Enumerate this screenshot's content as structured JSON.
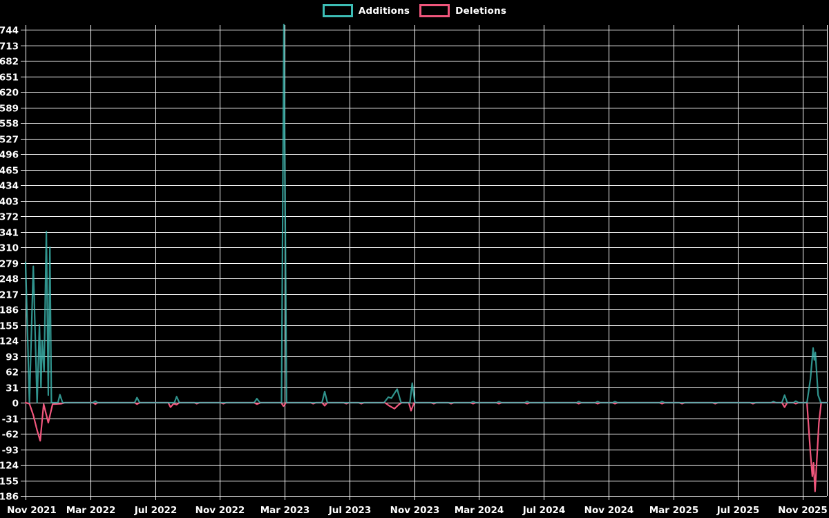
{
  "background_color": "#000000",
  "gridline_color": "#ffffff",
  "text_color": "#ffffff",
  "baseline_blend_color": "#8aa0ac",
  "legend": [
    {
      "label": "Additions",
      "color": "#3DBDB5"
    },
    {
      "label": "Deletions",
      "color": "#F0567C"
    }
  ],
  "chart_data": {
    "type": "line",
    "title": "",
    "xlabel": "",
    "ylabel": "",
    "grid": true,
    "legend_position": "top-center",
    "x_unit": "weeks since Nov 2021 (weekly commit activity)",
    "x_tick_labels": [
      "Nov 2021",
      "Mar 2022",
      "Jul 2022",
      "Nov 2022",
      "Mar 2023",
      "Jul 2023",
      "Nov 2023",
      "Mar 2024",
      "Jul 2024",
      "Nov 2024",
      "Mar 2025",
      "Jul 2025",
      "Nov 2025"
    ],
    "y_tick_labels": [
      744,
      713,
      682,
      651,
      620,
      589,
      558,
      527,
      496,
      465,
      434,
      403,
      372,
      341,
      310,
      279,
      248,
      217,
      186,
      155,
      124,
      93,
      62,
      31,
      0,
      -31,
      -62,
      -93,
      -124,
      -155,
      -186
    ],
    "ylim": [
      -186,
      754
    ],
    "y_tick_step": 31,
    "series": [
      {
        "name": "Additions",
        "color": "#3DBDB5",
        "opacity": 0.78,
        "points": [
          [
            0,
            280
          ],
          [
            1,
            0
          ],
          [
            2,
            272
          ],
          [
            3,
            0
          ],
          [
            3.6,
            155
          ],
          [
            4,
            30
          ],
          [
            4.3,
            124
          ],
          [
            4.8,
            62
          ],
          [
            5.4,
            341
          ],
          [
            5.9,
            15
          ],
          [
            6.3,
            310
          ],
          [
            6.7,
            0
          ],
          [
            8.4,
            0
          ],
          [
            8.9,
            16
          ],
          [
            9.6,
            0
          ],
          [
            17.5,
            0
          ],
          [
            18.1,
            3
          ],
          [
            18.7,
            0
          ],
          [
            28.3,
            0
          ],
          [
            28.9,
            10
          ],
          [
            29.6,
            0
          ],
          [
            38.6,
            0
          ],
          [
            39.2,
            12
          ],
          [
            39.9,
            0
          ],
          [
            59.3,
            0
          ],
          [
            60,
            8
          ],
          [
            60.8,
            0
          ],
          [
            66.4,
            0
          ],
          [
            67,
            754
          ],
          [
            67.7,
            0
          ],
          [
            76.9,
            0
          ],
          [
            77.6,
            22
          ],
          [
            78.3,
            0
          ],
          [
            93,
            0
          ],
          [
            94.1,
            11
          ],
          [
            94.9,
            9
          ],
          [
            96.4,
            27
          ],
          [
            97.4,
            0
          ],
          [
            99.7,
            0
          ],
          [
            100.3,
            39
          ],
          [
            101,
            0
          ],
          [
            115.5,
            0
          ],
          [
            116.1,
            2
          ],
          [
            116.8,
            0
          ],
          [
            122.2,
            0
          ],
          [
            122.8,
            2
          ],
          [
            123.5,
            0
          ],
          [
            129.5,
            0
          ],
          [
            130.1,
            2
          ],
          [
            130.8,
            0
          ],
          [
            142.9,
            0
          ],
          [
            143.5,
            2
          ],
          [
            144.2,
            0
          ],
          [
            147.8,
            0
          ],
          [
            148.4,
            2
          ],
          [
            149.1,
            0
          ],
          [
            152.3,
            0
          ],
          [
            152.9,
            2
          ],
          [
            153.6,
            0
          ],
          [
            164.5,
            0
          ],
          [
            165.1,
            2
          ],
          [
            165.8,
            0
          ],
          [
            193.4,
            0
          ],
          [
            194,
            2
          ],
          [
            194.7,
            0
          ],
          [
            196.2,
            0
          ],
          [
            196.9,
            15
          ],
          [
            197.6,
            0
          ],
          [
            199.2,
            0
          ],
          [
            199.8,
            3
          ],
          [
            200.5,
            0
          ],
          [
            202.7,
            0
          ],
          [
            203.6,
            47
          ],
          [
            204.3,
            109
          ],
          [
            204.6,
            85
          ],
          [
            204.9,
            100
          ],
          [
            205.6,
            15
          ],
          [
            206.3,
            0
          ],
          [
            208,
            0
          ]
        ]
      },
      {
        "name": "Deletions",
        "color": "#F0567C",
        "opacity": 1,
        "points": [
          [
            0,
            0
          ],
          [
            1,
            -2
          ],
          [
            2,
            -25
          ],
          [
            3,
            -55
          ],
          [
            3.8,
            -76
          ],
          [
            4.7,
            -3
          ],
          [
            5.9,
            -40
          ],
          [
            7,
            -3
          ],
          [
            9.3,
            -2
          ],
          [
            10.2,
            0
          ],
          [
            17.5,
            0
          ],
          [
            18.1,
            -3
          ],
          [
            18.7,
            0
          ],
          [
            28.3,
            0
          ],
          [
            28.9,
            -3
          ],
          [
            29.6,
            0
          ],
          [
            37,
            0
          ],
          [
            37.6,
            -9
          ],
          [
            38.4,
            -2
          ],
          [
            39.2,
            -4
          ],
          [
            39.9,
            0
          ],
          [
            43.8,
            0
          ],
          [
            44.4,
            -2
          ],
          [
            45.1,
            0
          ],
          [
            50.6,
            0
          ],
          [
            51.3,
            -2
          ],
          [
            52,
            0
          ],
          [
            59.3,
            0
          ],
          [
            60,
            -3
          ],
          [
            61,
            0
          ],
          [
            66.3,
            0
          ],
          [
            66.9,
            -7
          ],
          [
            67.6,
            0
          ],
          [
            74,
            0
          ],
          [
            74.6,
            -2
          ],
          [
            75.3,
            0
          ],
          [
            76.9,
            0
          ],
          [
            77.6,
            -6
          ],
          [
            78.3,
            0
          ],
          [
            82.5,
            0
          ],
          [
            83.2,
            -2
          ],
          [
            83.9,
            0
          ],
          [
            86.4,
            0
          ],
          [
            87.1,
            -2
          ],
          [
            87.8,
            0
          ],
          [
            93.2,
            0
          ],
          [
            94.3,
            -6
          ],
          [
            95.7,
            -12
          ],
          [
            96.8,
            -4
          ],
          [
            97.6,
            0
          ],
          [
            99.4,
            0
          ],
          [
            100,
            -16
          ],
          [
            100.8,
            0
          ],
          [
            105.2,
            0
          ],
          [
            105.9,
            -2
          ],
          [
            106.6,
            0
          ],
          [
            109.7,
            0
          ],
          [
            110.4,
            -2
          ],
          [
            111.1,
            0
          ],
          [
            115.4,
            0
          ],
          [
            116.1,
            -2
          ],
          [
            116.8,
            0
          ],
          [
            122.1,
            0
          ],
          [
            122.8,
            -2
          ],
          [
            123.5,
            0
          ],
          [
            129.4,
            0
          ],
          [
            130.1,
            -2
          ],
          [
            130.8,
            0
          ],
          [
            142.8,
            0
          ],
          [
            143.5,
            -2
          ],
          [
            144.2,
            0
          ],
          [
            147.7,
            0
          ],
          [
            148.4,
            -2
          ],
          [
            149.1,
            0
          ],
          [
            152.2,
            0
          ],
          [
            152.9,
            -2
          ],
          [
            153.6,
            0
          ],
          [
            164.4,
            0
          ],
          [
            165.1,
            -2
          ],
          [
            165.8,
            0
          ],
          [
            169.6,
            0
          ],
          [
            170.3,
            -2
          ],
          [
            171,
            0
          ],
          [
            178.2,
            0
          ],
          [
            178.9,
            -2
          ],
          [
            179.6,
            0
          ],
          [
            188,
            0
          ],
          [
            188.7,
            -2
          ],
          [
            189.4,
            0
          ],
          [
            196.2,
            0
          ],
          [
            196.9,
            -9
          ],
          [
            197.6,
            0
          ],
          [
            199.1,
            0
          ],
          [
            199.8,
            -2
          ],
          [
            200.5,
            0
          ],
          [
            202.7,
            0
          ],
          [
            203.6,
            -100
          ],
          [
            204.1,
            -147
          ],
          [
            204.4,
            -120
          ],
          [
            204.8,
            -177
          ],
          [
            205.8,
            -40
          ],
          [
            206.4,
            0
          ],
          [
            208,
            0
          ]
        ]
      }
    ]
  }
}
